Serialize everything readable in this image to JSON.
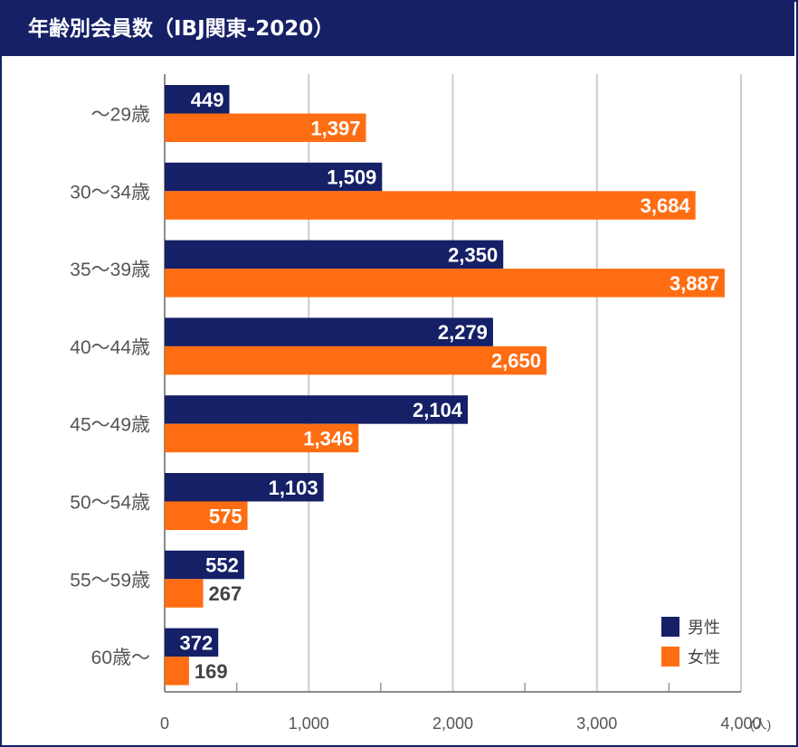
{
  "header": {
    "title": "年齢別会員数（IBJ関東-2020）"
  },
  "colors": {
    "male": "#152066",
    "female": "#FF6D12",
    "grid": "#cccccc",
    "axis": "#888888",
    "label_text": "#444444"
  },
  "chart_data": {
    "type": "bar",
    "orientation": "horizontal",
    "title": "年齢別会員数（IBJ関東-2020）",
    "categories": [
      "～29歳",
      "30～34歳",
      "35～39歳",
      "40～44歳",
      "45～49歳",
      "50～54歳",
      "55～59歳",
      "60歳～"
    ],
    "series": [
      {
        "name": "男性",
        "values": [
          449,
          1509,
          2350,
          2279,
          2104,
          1103,
          552,
          372
        ],
        "labels": [
          "449",
          "1,509",
          "2,350",
          "2,279",
          "2,104",
          "1,103",
          "552",
          "372"
        ]
      },
      {
        "name": "女性",
        "values": [
          1397,
          3684,
          3887,
          2650,
          1346,
          575,
          267,
          169
        ],
        "labels": [
          "1,397",
          "3,684",
          "3,887",
          "2,650",
          "1,346",
          "575",
          "267",
          "169"
        ]
      }
    ],
    "xlim": [
      0,
      4000
    ],
    "xticks": [
      0,
      1000,
      2000,
      3000,
      4000
    ],
    "xtick_labels": [
      "0",
      "1,000",
      "2,000",
      "3,000",
      "4,000"
    ],
    "unit": "(人)",
    "legend": "bottom-right",
    "grid": true
  }
}
